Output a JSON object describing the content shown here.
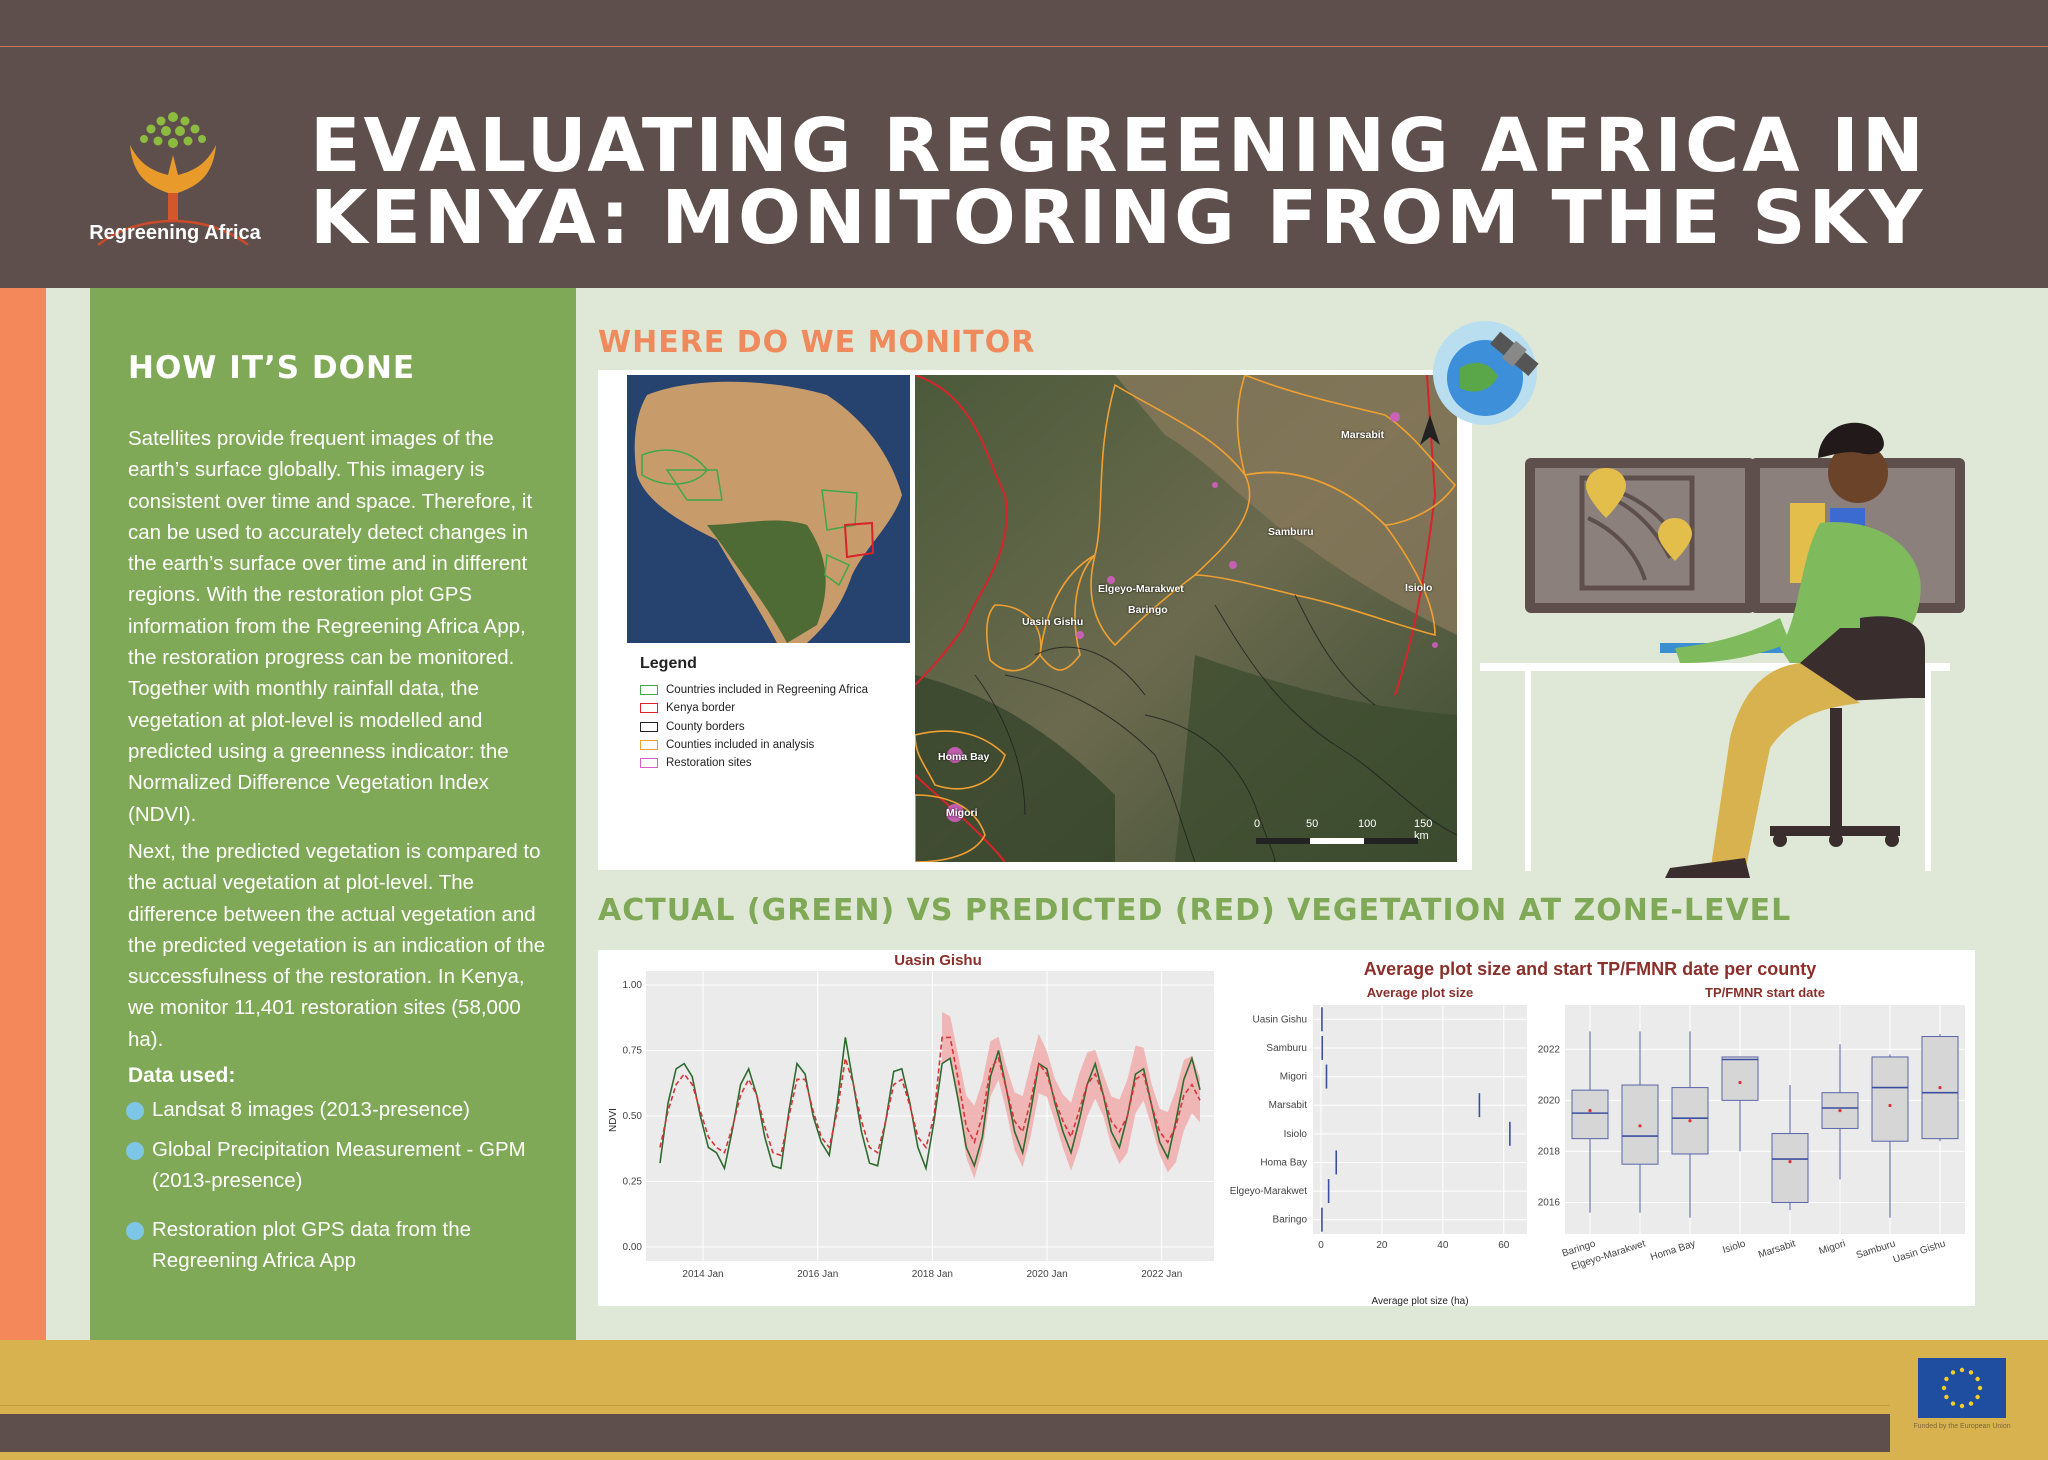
{
  "header": {
    "logo_text": "Regreening Africa",
    "title_line1": "EVALUATING REGREENING AFRICA IN",
    "title_line2": "KENYA: MONITORING FROM THE SKY"
  },
  "how": {
    "title": "HOW IT’S DONE",
    "para1": "Satellites provide frequent images of the earth’s surface globally. This imagery is consistent over time and space. Therefore, it can be used to accurately detect changes in the earth’s surface over time and in different regions. With the restoration plot GPS information from the Regreening Africa App, the restoration progress can be monitored. Together with monthly rainfall data, the vegetation at plot-level is modelled and predicted using a greenness indicator: the Normalized Difference Vegetation Index (NDVI).",
    "para2": "Next, the predicted vegetation is compared to the actual vegetation at plot-level. The difference between the actual vegetation and the predicted vegetation is an indication of the successfulness of the restoration. In Kenya, we monitor 11,401 restoration sites (58,000 ha).",
    "data_used_label": "Data used:",
    "bullets": [
      "Landsat 8 images (2013-presence)",
      "Global Precipitation Measurement - GPM (2013-presence)",
      "Restoration plot GPS data from the Regreening Africa App"
    ],
    "bullet_color": "#7ec6e6"
  },
  "where": {
    "title": "WHERE DO WE MONITOR",
    "legend_title": "Legend",
    "legend": [
      {
        "label": "Countries included in Regreening Africa",
        "color": "#3fa84b"
      },
      {
        "label": "Kenya border",
        "color": "#d8232a"
      },
      {
        "label": "County borders",
        "color": "#222222"
      },
      {
        "label": "Counties included in analysis",
        "color": "#f0a030"
      },
      {
        "label": "Restoration sites",
        "color": "#d65fc4"
      }
    ],
    "counties": [
      "Marsabit",
      "Samburu",
      "Isiolo",
      "Elgeyo-Marakwet",
      "Baringo",
      "Uasin Gishu",
      "Homa Bay",
      "Migori"
    ],
    "scale_labels": [
      "0",
      "50",
      "100",
      "150 km"
    ]
  },
  "actual": {
    "title": "ACTUAL (GREEN) VS PREDICTED (RED) VEGETATION AT ZONE-LEVEL"
  },
  "chart_data": [
    {
      "type": "line",
      "title": "Uasin Gishu",
      "ylabel": "NDVI",
      "xlabel": "",
      "ylim": [
        0,
        1.0
      ],
      "yticks": [
        "1.00",
        "0.75",
        "0.50",
        "0.25",
        "0.00"
      ],
      "xticks": [
        "2014 Jan",
        "2016 Jan",
        "2018 Jan",
        "2020 Jan",
        "2022 Jan"
      ],
      "x_start": "2013-04",
      "x_end": "2022-09",
      "series": [
        {
          "color": "#2f6b2f",
          "values": [
            0.32,
            0.55,
            0.68,
            0.7,
            0.65,
            0.5,
            0.38,
            0.36,
            0.3,
            0.45,
            0.62,
            0.68,
            0.58,
            0.42,
            0.31,
            0.3,
            0.52,
            0.7,
            0.66,
            0.5,
            0.4,
            0.35,
            0.55,
            0.8,
            0.62,
            0.44,
            0.32,
            0.31,
            0.48,
            0.67,
            0.68,
            0.55,
            0.38,
            0.3,
            0.48,
            0.7,
            0.72,
            0.56,
            0.38,
            0.31,
            0.42,
            0.65,
            0.75,
            0.6,
            0.44,
            0.36,
            0.52,
            0.7,
            0.68,
            0.55,
            0.44,
            0.36,
            0.48,
            0.62,
            0.7,
            0.58,
            0.44,
            0.38,
            0.5,
            0.66,
            0.68,
            0.54,
            0.4,
            0.34,
            0.48,
            0.64,
            0.72,
            0.6
          ]
        },
        {
          "color": "#d8343a",
          "values": [
            0.38,
            0.52,
            0.62,
            0.66,
            0.62,
            0.52,
            0.42,
            0.38,
            0.36,
            0.46,
            0.58,
            0.64,
            0.58,
            0.46,
            0.36,
            0.35,
            0.5,
            0.64,
            0.64,
            0.52,
            0.42,
            0.38,
            0.52,
            0.72,
            0.62,
            0.48,
            0.38,
            0.36,
            0.48,
            0.62,
            0.64,
            0.54,
            0.42,
            0.38,
            0.5,
            0.8,
            0.8,
            0.64,
            0.46,
            0.4,
            0.5,
            0.68,
            0.72,
            0.6,
            0.48,
            0.44,
            0.56,
            0.7,
            0.66,
            0.56,
            0.48,
            0.42,
            0.52,
            0.62,
            0.66,
            0.58,
            0.48,
            0.44,
            0.5,
            0.64,
            0.66,
            0.54,
            0.44,
            0.4,
            0.46,
            0.58,
            0.62,
            0.56
          ]
        }
      ]
    },
    {
      "type": "bar",
      "title": "Average plot size and start TP/FMNR date per county",
      "subtitle": "Average plot size",
      "xlabel": "Average plot size (ha)",
      "xlim": [
        0,
        65
      ],
      "xticks": [
        "0",
        "20",
        "40",
        "60"
      ],
      "categories": [
        "Uasin Gishu",
        "Samburu",
        "Migori",
        "Marsabit",
        "Isiolo",
        "Homa Bay",
        "Elgeyo-Marakwet",
        "Baringo"
      ],
      "values": [
        0.3,
        0.4,
        1.8,
        52,
        62,
        5,
        2.5,
        0.3
      ]
    },
    {
      "type": "boxplot",
      "subtitle": "TP/FMNR start date",
      "ylim": [
        2015,
        2023.5
      ],
      "yticks": [
        "2016",
        "2018",
        "2020",
        "2022"
      ],
      "categories": [
        "Baringo",
        "Elgeyo-Marakwet",
        "Homa Bay",
        "Isiolo",
        "Marsabit",
        "Migori",
        "Samburu",
        "Uasin Gishu"
      ],
      "boxes": [
        {
          "min": 2015.6,
          "q1": 2018.5,
          "median": 2019.5,
          "q3": 2020.4,
          "max": 2022.7,
          "mean": 2019.6
        },
        {
          "min": 2015.6,
          "q1": 2017.5,
          "median": 2018.6,
          "q3": 2020.6,
          "max": 2022.7,
          "mean": 2019.0
        },
        {
          "min": 2015.4,
          "q1": 2017.9,
          "median": 2019.3,
          "q3": 2020.5,
          "max": 2022.7,
          "mean": 2019.2
        },
        {
          "min": 2018.0,
          "q1": 2020.0,
          "median": 2021.6,
          "q3": 2021.7,
          "max": 2021.7,
          "mean": 2020.7
        },
        {
          "min": 2015.7,
          "q1": 2016.0,
          "median": 2017.7,
          "q3": 2018.7,
          "max": 2020.6,
          "mean": 2017.6
        },
        {
          "min": 2016.9,
          "q1": 2018.9,
          "median": 2019.7,
          "q3": 2020.3,
          "max": 2022.2,
          "mean": 2019.6
        },
        {
          "min": 2015.4,
          "q1": 2018.4,
          "median": 2020.5,
          "q3": 2021.7,
          "max": 2021.8,
          "mean": 2019.8
        },
        {
          "min": 2018.4,
          "q1": 2018.5,
          "median": 2020.3,
          "q3": 2022.5,
          "max": 2022.6,
          "mean": 2020.5
        }
      ]
    }
  ],
  "footer": {
    "eu_text": "Funded by the European Union"
  }
}
